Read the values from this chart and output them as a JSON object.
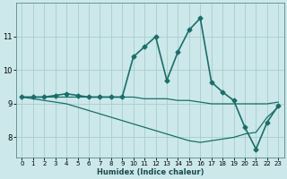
{
  "xlabel": "Humidex (Indice chaleur)",
  "background_color": "#cce8ea",
  "grid_color": "#aacccc",
  "line_color": "#1a6e6a",
  "xlim": [
    -0.5,
    23.5
  ],
  "ylim": [
    7.4,
    12.0
  ],
  "yticks": [
    8,
    9,
    10,
    11
  ],
  "xticks": [
    0,
    1,
    2,
    3,
    4,
    5,
    6,
    7,
    8,
    9,
    10,
    11,
    12,
    13,
    14,
    15,
    16,
    17,
    18,
    19,
    20,
    21,
    22,
    23
  ],
  "series": {
    "main": {
      "x": [
        0,
        1,
        2,
        3,
        4,
        5,
        6,
        7,
        8,
        9,
        10,
        11,
        12,
        13,
        14,
        15,
        16,
        17,
        18,
        19,
        20,
        21,
        22,
        23
      ],
      "y": [
        9.2,
        9.2,
        9.2,
        9.25,
        9.3,
        9.25,
        9.2,
        9.2,
        9.2,
        9.2,
        10.4,
        10.7,
        11.0,
        9.7,
        10.55,
        11.2,
        11.55,
        9.65,
        9.35,
        9.1,
        8.3,
        7.65,
        8.45,
        8.95
      ],
      "marker": "D",
      "markersize": 2.5,
      "linewidth": 1.2
    },
    "upper": {
      "x": [
        0,
        1,
        2,
        3,
        4,
        5,
        6,
        7,
        8,
        9,
        10,
        11,
        12,
        13,
        14,
        15,
        16,
        17,
        18,
        19,
        20,
        21,
        22,
        23
      ],
      "y": [
        9.2,
        9.2,
        9.2,
        9.2,
        9.2,
        9.2,
        9.2,
        9.2,
        9.2,
        9.2,
        9.2,
        9.15,
        9.15,
        9.15,
        9.1,
        9.1,
        9.05,
        9.0,
        9.0,
        9.0,
        9.0,
        9.0,
        9.0,
        9.05
      ],
      "marker": null,
      "linewidth": 0.9
    },
    "lower": {
      "x": [
        0,
        1,
        2,
        3,
        4,
        5,
        6,
        7,
        8,
        9,
        10,
        11,
        12,
        13,
        14,
        15,
        16,
        17,
        18,
        19,
        20,
        21,
        22,
        23
      ],
      "y": [
        9.2,
        9.15,
        9.1,
        9.05,
        9.0,
        8.9,
        8.8,
        8.7,
        8.6,
        8.5,
        8.4,
        8.3,
        8.2,
        8.1,
        8.0,
        7.9,
        7.85,
        7.9,
        7.95,
        8.0,
        8.1,
        8.15,
        8.6,
        8.9
      ],
      "marker": null,
      "linewidth": 0.9
    }
  }
}
